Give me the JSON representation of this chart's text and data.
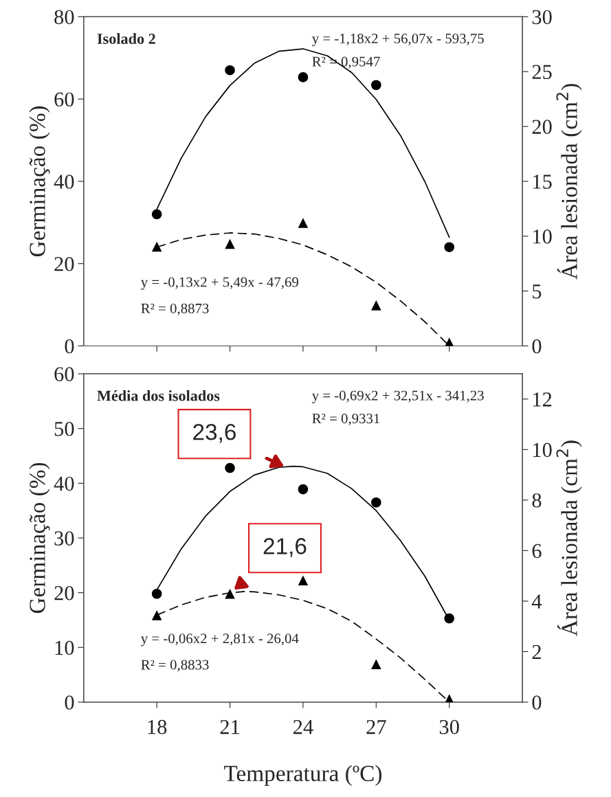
{
  "chart_data": [
    {
      "type": "scatter",
      "title": "Isolado 2",
      "ylabel": "Germinação (%)",
      "y2label": "Área lesionada (cm$^{2}$)",
      "x": [
        18,
        21,
        24,
        27,
        30
      ],
      "xlim": [
        15,
        33
      ],
      "xticks": [
        {
          "value": 18,
          "label": null
        },
        {
          "value": 21,
          "label": null
        },
        {
          "value": 24,
          "label": null
        },
        {
          "value": 27,
          "label": null
        },
        {
          "value": 30,
          "label": null
        }
      ],
      "ylim": [
        0,
        80
      ],
      "yticks": [
        0,
        20,
        40,
        60,
        80
      ],
      "y2lim": [
        0,
        30
      ],
      "y2ticks": [
        0,
        5,
        10,
        15,
        20,
        25,
        30
      ],
      "tick_labels": "y",
      "grid": false,
      "legend": false,
      "series": [
        {
          "type": "scatter",
          "color": "#000000",
          "marker": "circle",
          "values": [
            32,
            67,
            65.3,
            63.4,
            24
          ]
        },
        {
          "type": "scatter",
          "color": "#000000",
          "marker": "triangle",
          "axis": "y2",
          "values": [
            9.05,
            9.3,
            11.2,
            3.7,
            0.3
          ]
        },
        {
          "type": "line",
          "color": "#000000",
          "marker": "none",
          "line_style": "solid",
          "x": [
            18,
            19,
            20,
            21,
            22,
            23,
            24,
            25,
            26,
            27,
            28,
            29,
            30
          ],
          "values": [
            33.2,
            45.6,
            55.7,
            63.3,
            68.7,
            71.6,
            72.2,
            70.5,
            66.4,
            59.9,
            51.1,
            39.9,
            26.4
          ]
        },
        {
          "type": "line",
          "color": "#000000",
          "marker": "none",
          "line_style": "dashed",
          "axis": "y2",
          "x": [
            18,
            19,
            20,
            21,
            22,
            23,
            24,
            25,
            26,
            27,
            28,
            29,
            30
          ],
          "values": [
            9.0,
            9.7,
            10.1,
            10.3,
            10.2,
            9.8,
            9.2,
            8.3,
            7.2,
            5.8,
            4.1,
            2.2,
            0
          ]
        }
      ],
      "annotations": [
        "y = -1,18x2 + 56,07x - 593,75",
        "R² = 0,9547",
        "y = -0,13x2 + 5,49x - 47,69",
        "R² = 0,8873"
      ]
    },
    {
      "type": "scatter",
      "title": "Média dos isolados",
      "xlabel": "Temperatura (ºC)",
      "ylabel": "Germinação (%)",
      "y2label": "Área lesionada (cm$^{2}$)",
      "x": [
        18,
        21,
        24,
        27,
        30
      ],
      "xlim": [
        15,
        33
      ],
      "xticks": [
        18,
        21,
        24,
        27,
        30
      ],
      "ylim": [
        0,
        60
      ],
      "yticks": [
        0,
        10,
        20,
        30,
        40,
        50,
        60
      ],
      "y2lim": [
        0,
        13
      ],
      "y2ticks": [
        0,
        2,
        4,
        6,
        8,
        10,
        12
      ],
      "grid": false,
      "legend": false,
      "series": [
        {
          "type": "scatter",
          "color": "#000000",
          "marker": "circle",
          "values": [
            19.8,
            42.8,
            38.9,
            36.5,
            15.3
          ]
        },
        {
          "type": "scatter",
          "color": "#000000",
          "marker": "triangle",
          "axis": "y2",
          "values": [
            3.44,
            4.29,
            4.82,
            1.5,
            0.12
          ]
        },
        {
          "type": "line",
          "color": "#000000",
          "marker": "none",
          "line_style": "solid",
          "x": [
            18,
            19,
            20,
            21,
            22,
            23,
            23.6,
            24,
            25,
            26,
            27,
            28,
            29,
            30
          ],
          "values": [
            20.5,
            28,
            34,
            38.5,
            41.5,
            42.9,
            43.1,
            43,
            41.8,
            39,
            35,
            29.5,
            23,
            15
          ]
        },
        {
          "type": "line",
          "color": "#000000",
          "marker": "none",
          "line_style": "dashed",
          "axis": "y2",
          "x": [
            18,
            19,
            20,
            21,
            21.6,
            22,
            23,
            24,
            25,
            26,
            27,
            28,
            29,
            30
          ],
          "values": [
            3.45,
            3.85,
            4.15,
            4.33,
            4.38,
            4.37,
            4.25,
            4.03,
            3.7,
            3.2,
            2.5,
            1.75,
            0.9,
            0
          ]
        }
      ],
      "annotations": [
        "y = -0,69x2 + 32,51x - 341,23",
        "R² = 0,9331",
        "y = -0,06x2 + 2,81x - 26,04",
        "R² = 0,8833",
        {
          "text": "23,6",
          "x": 23.3,
          "y": 42.9
        },
        {
          "text": "21,6",
          "x": 21.1,
          "y": 20.3
        }
      ]
    }
  ]
}
